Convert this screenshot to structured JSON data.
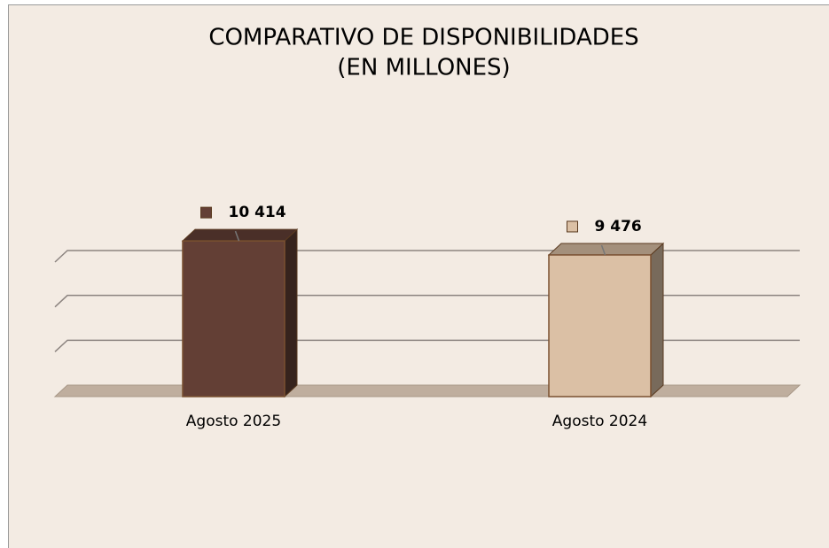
{
  "chart_data": {
    "type": "bar3d",
    "title": "COMPARATIVO DE DISPONIBILIDADES",
    "subtitle": "(EN MILLONES)",
    "categories": [
      "Agosto 2025",
      "Agosto 2024"
    ],
    "values": [
      10414,
      9476
    ],
    "value_labels": [
      "10 414",
      "9 476"
    ],
    "colors": [
      "#633f35",
      "#dbc0a5"
    ],
    "ylim": [
      0,
      12000
    ],
    "yticks": [
      0,
      3000,
      6000,
      9000
    ],
    "grid": true
  }
}
